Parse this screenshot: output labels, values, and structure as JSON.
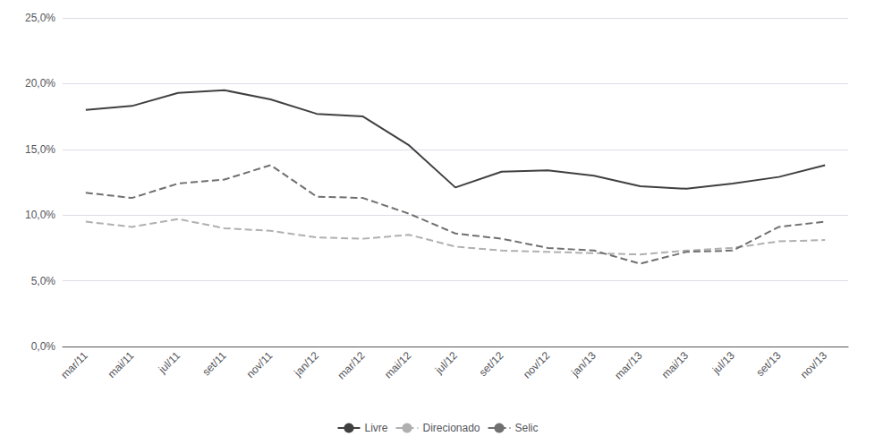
{
  "chart_data": {
    "type": "line",
    "categories": [
      "mar/11",
      "mai/11",
      "jul/11",
      "set/11",
      "nov/11",
      "jan/12",
      "mar/12",
      "mai/12",
      "jul/12",
      "set/12",
      "nov/12",
      "jan/13",
      "mar/13",
      "mai/13",
      "jul/13",
      "set/13",
      "nov/13"
    ],
    "series": [
      {
        "name": "Livre",
        "color": "#404040",
        "line_style": "solid",
        "values": [
          0.18,
          0.183,
          0.193,
          0.195,
          0.188,
          0.177,
          0.175,
          0.153,
          0.121,
          0.133,
          0.134,
          0.13,
          0.122,
          0.12,
          0.124,
          0.129,
          0.138
        ]
      },
      {
        "name": "Direcionado",
        "color": "#b0b0b0",
        "line_style": "dashed",
        "values": [
          0.095,
          0.091,
          0.097,
          0.09,
          0.088,
          0.083,
          0.082,
          0.085,
          0.076,
          0.073,
          0.072,
          0.071,
          0.07,
          0.073,
          0.075,
          0.08,
          0.081
        ]
      },
      {
        "name": "Selic",
        "color": "#707070",
        "line_style": "dashed",
        "values": [
          0.117,
          0.113,
          0.124,
          0.127,
          0.138,
          0.114,
          0.113,
          0.101,
          0.086,
          0.082,
          0.075,
          0.073,
          0.063,
          0.072,
          0.073,
          0.091,
          0.095
        ]
      }
    ],
    "ylim": [
      0.0,
      0.25
    ],
    "yticks": [
      {
        "value": 0.0,
        "label": "0,0%"
      },
      {
        "value": 0.05,
        "label": "5,0%"
      },
      {
        "value": 0.1,
        "label": "10,0%"
      },
      {
        "value": 0.15,
        "label": "15,0%"
      },
      {
        "value": 0.2,
        "label": "20,0%"
      },
      {
        "value": 0.25,
        "label": "25,0%"
      }
    ],
    "grid": true,
    "legend": "bottom"
  }
}
